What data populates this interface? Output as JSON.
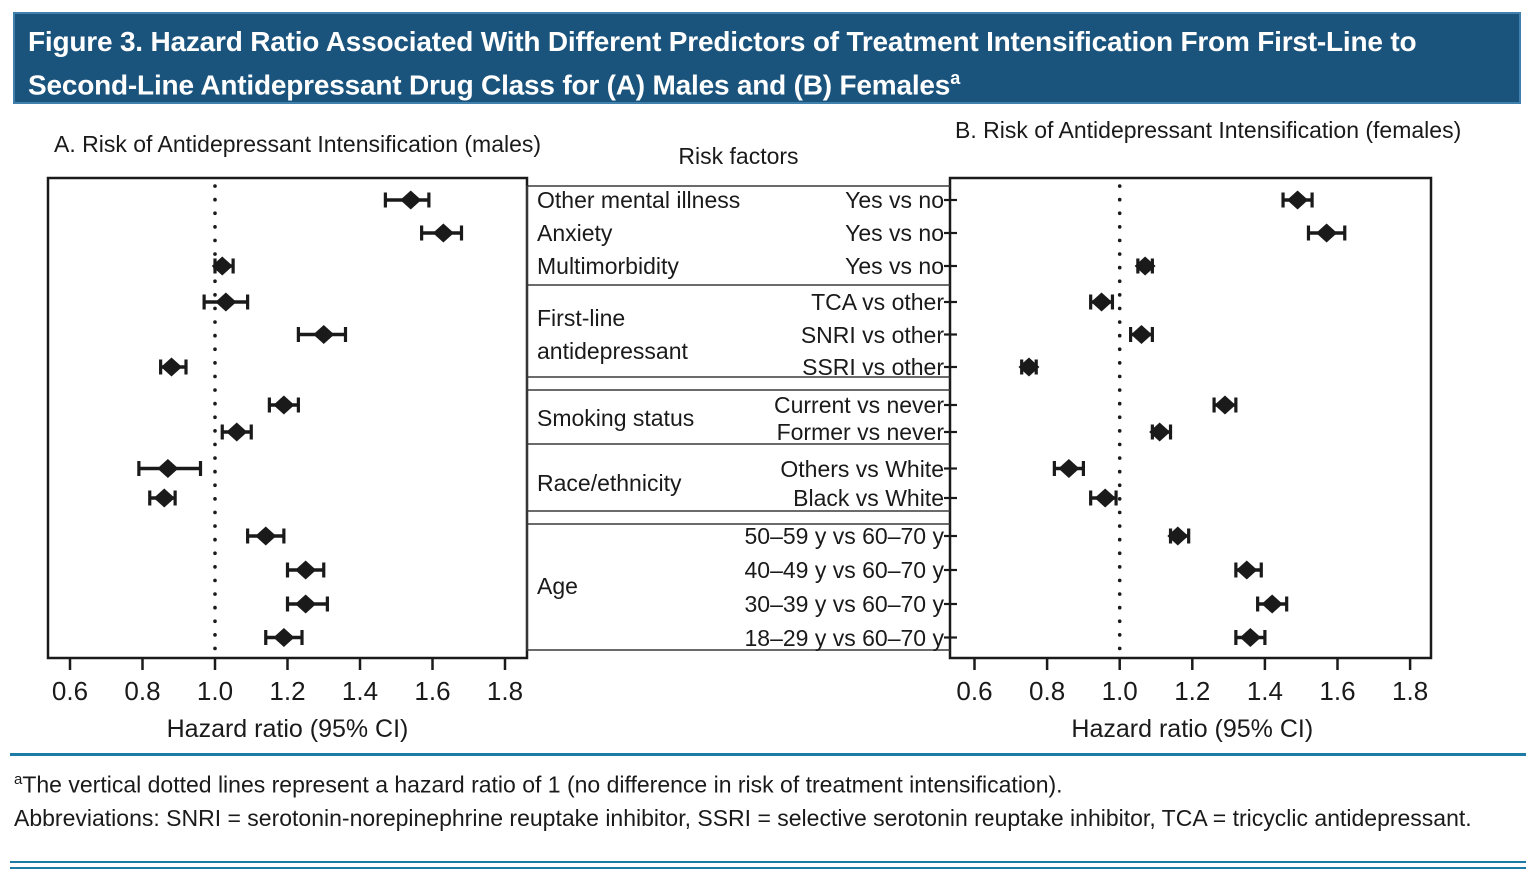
{
  "header": {
    "title": "Figure 3. Hazard Ratio Associated With Different Predictors of Treatment Intensification From First-Line to Second-Line Antidepressant Drug Class for (A) Males and (B) Females",
    "footnote_marker": "a"
  },
  "table": {
    "header": "Risk factors",
    "sections": [
      {
        "factors": [
          {
            "label": "Other mental illness",
            "rows": [
              "Yes vs no"
            ]
          },
          {
            "label": "Anxiety",
            "rows": [
              "Yes vs no"
            ]
          },
          {
            "label": "Multimorbidity",
            "rows": [
              "Yes vs no"
            ]
          }
        ]
      },
      {
        "factors": [
          {
            "label": "First-line antidepressant",
            "rows": [
              "TCA vs other",
              "SNRI vs other",
              "SSRI vs other"
            ]
          }
        ]
      },
      {
        "factors": [
          {
            "label": "Smoking status",
            "rows": [
              "Current vs never",
              "Former vs never"
            ]
          }
        ]
      },
      {
        "factors": [
          {
            "label": "Race/ethnicity",
            "rows": [
              "Others vs White",
              "Black vs White"
            ]
          }
        ]
      },
      {
        "factors": [
          {
            "label": "Age",
            "rows": [
              "50–59 y vs 60–70 y",
              "40–49 y vs 60–70 y",
              "30–39 y vs 60–70 y",
              "18–29 y vs 60–70 y"
            ]
          }
        ]
      }
    ]
  },
  "chart_data": [
    {
      "type": "forest",
      "panel": "A",
      "title": "A. Risk of Antidepressant Intensification (males)",
      "xlabel": "Hazard ratio (95% CI)",
      "xticks": [
        0.6,
        0.8,
        1.0,
        1.2,
        1.4,
        1.6,
        1.8
      ],
      "xticklabels": [
        "0.6",
        "0.8",
        "1.0",
        "1.2",
        "1.4",
        "1.6",
        "1.8"
      ],
      "reference_line": 1.0,
      "rows": [
        {
          "factor": "Other mental illness",
          "comparison": "Yes vs no",
          "hr": 1.54,
          "lo": 1.47,
          "hi": 1.59
        },
        {
          "factor": "Anxiety",
          "comparison": "Yes vs no",
          "hr": 1.63,
          "lo": 1.57,
          "hi": 1.68
        },
        {
          "factor": "Multimorbidity",
          "comparison": "Yes vs no",
          "hr": 1.02,
          "lo": 1.0,
          "hi": 1.05
        },
        {
          "factor": "First-line antidepressant",
          "comparison": "TCA vs other",
          "hr": 1.03,
          "lo": 0.97,
          "hi": 1.09
        },
        {
          "factor": "First-line antidepressant",
          "comparison": "SNRI vs other",
          "hr": 1.3,
          "lo": 1.23,
          "hi": 1.36
        },
        {
          "factor": "First-line antidepressant",
          "comparison": "SSRI vs other",
          "hr": 0.88,
          "lo": 0.85,
          "hi": 0.92
        },
        {
          "factor": "Smoking status",
          "comparison": "Current vs never",
          "hr": 1.19,
          "lo": 1.15,
          "hi": 1.23
        },
        {
          "factor": "Smoking status",
          "comparison": "Former vs never",
          "hr": 1.06,
          "lo": 1.02,
          "hi": 1.1
        },
        {
          "factor": "Race/ethnicity",
          "comparison": "Others vs White",
          "hr": 0.87,
          "lo": 0.79,
          "hi": 0.96
        },
        {
          "factor": "Race/ethnicity",
          "comparison": "Black vs White",
          "hr": 0.86,
          "lo": 0.82,
          "hi": 0.89
        },
        {
          "factor": "Age",
          "comparison": "50–59 y vs 60–70 y",
          "hr": 1.14,
          "lo": 1.09,
          "hi": 1.19
        },
        {
          "factor": "Age",
          "comparison": "40–49 y vs 60–70 y",
          "hr": 1.25,
          "lo": 1.2,
          "hi": 1.3
        },
        {
          "factor": "Age",
          "comparison": "30–39 y vs 60–70 y",
          "hr": 1.25,
          "lo": 1.2,
          "hi": 1.31
        },
        {
          "factor": "Age",
          "comparison": "18–29 y vs 60–70 y",
          "hr": 1.19,
          "lo": 1.14,
          "hi": 1.24
        }
      ]
    },
    {
      "type": "forest",
      "panel": "B",
      "title": "B. Risk of Antidepressant Intensification (females)",
      "xlabel": "Hazard ratio (95% CI)",
      "xticks": [
        0.6,
        0.8,
        1.0,
        1.2,
        1.4,
        1.6,
        1.8
      ],
      "xticklabels": [
        "0.6",
        "0.8",
        "1.0",
        "1.2",
        "1.4",
        "1.6",
        "1.8"
      ],
      "reference_line": 1.0,
      "rows": [
        {
          "factor": "Other mental illness",
          "comparison": "Yes vs no",
          "hr": 1.49,
          "lo": 1.45,
          "hi": 1.53
        },
        {
          "factor": "Anxiety",
          "comparison": "Yes vs no",
          "hr": 1.57,
          "lo": 1.52,
          "hi": 1.62
        },
        {
          "factor": "Multimorbidity",
          "comparison": "Yes vs no",
          "hr": 1.07,
          "lo": 1.05,
          "hi": 1.09
        },
        {
          "factor": "First-line antidepressant",
          "comparison": "TCA vs other",
          "hr": 0.95,
          "lo": 0.92,
          "hi": 0.98
        },
        {
          "factor": "First-line antidepressant",
          "comparison": "SNRI vs other",
          "hr": 1.06,
          "lo": 1.03,
          "hi": 1.09
        },
        {
          "factor": "First-line antidepressant",
          "comparison": "SSRI vs other",
          "hr": 0.75,
          "lo": 0.73,
          "hi": 0.77
        },
        {
          "factor": "Smoking status",
          "comparison": "Current vs never",
          "hr": 1.29,
          "lo": 1.26,
          "hi": 1.32
        },
        {
          "factor": "Smoking status",
          "comparison": "Former vs never",
          "hr": 1.11,
          "lo": 1.09,
          "hi": 1.14
        },
        {
          "factor": "Race/ethnicity",
          "comparison": "Others vs White",
          "hr": 0.86,
          "lo": 0.82,
          "hi": 0.9
        },
        {
          "factor": "Race/ethnicity",
          "comparison": "Black vs White",
          "hr": 0.96,
          "lo": 0.92,
          "hi": 0.99
        },
        {
          "factor": "Age",
          "comparison": "50–59 y vs 60–70 y",
          "hr": 1.16,
          "lo": 1.14,
          "hi": 1.19
        },
        {
          "factor": "Age",
          "comparison": "40–49 y vs 60–70 y",
          "hr": 1.35,
          "lo": 1.32,
          "hi": 1.39
        },
        {
          "factor": "Age",
          "comparison": "30–39 y vs 60–70 y",
          "hr": 1.42,
          "lo": 1.38,
          "hi": 1.46
        },
        {
          "factor": "Age",
          "comparison": "18–29 y vs 60–70 y",
          "hr": 1.36,
          "lo": 1.32,
          "hi": 1.4
        }
      ]
    }
  ],
  "footnote": {
    "marker": "a",
    "note": "The vertical dotted lines represent a hazard ratio of 1 (no difference in risk of treatment intensification).",
    "abbreviations": "Abbreviations: SNRI = serotonin-norepinephrine reuptake inhibitor, SSRI = selective serotonin reuptake inhibitor, TCA = tricyclic antidepressant."
  },
  "colors": {
    "header_bg": "#1a537c",
    "rule": "#1d7ca6",
    "ink": "#1a1a1a"
  }
}
